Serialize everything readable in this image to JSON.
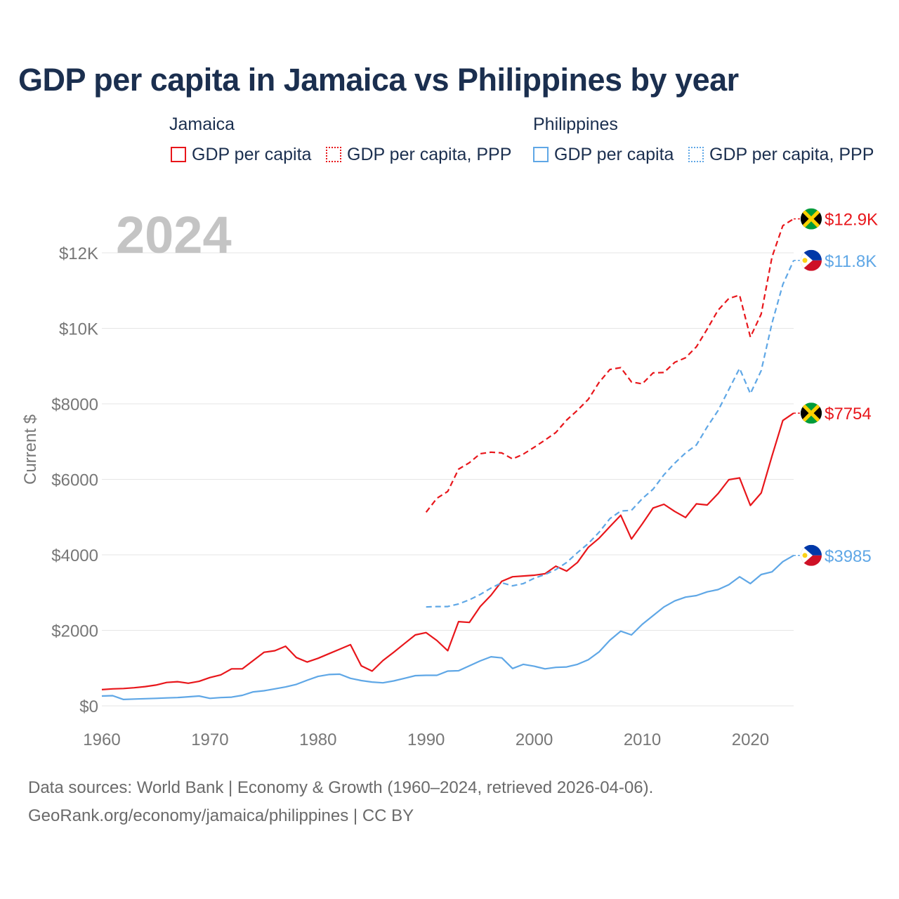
{
  "title": "GDP per capita in Jamaica vs Philippines by year",
  "year_display": "2024",
  "legend": {
    "jamaica_title": "Jamaica",
    "philippines_title": "Philippines",
    "jam_gdp": "GDP per capita",
    "jam_ppp": "GDP per capita, PPP",
    "phl_gdp": "GDP per capita",
    "phl_ppp": "GDP per capita, PPP"
  },
  "colors": {
    "jamaica": "#e8161b",
    "philippines": "#5fa7e6",
    "grid": "#e6e6e6",
    "axis_text": "#777777",
    "title": "#1b2f4f"
  },
  "footer": {
    "line1": "Data sources: World Bank | Economy & Growth (1960–2024, retrieved 2026-04-06).",
    "line2": "GeoRank.org/economy/jamaica/philippines | CC BY"
  },
  "chart_data": {
    "type": "line",
    "title": "GDP per capita in Jamaica vs Philippines by year",
    "xlabel": "",
    "ylabel": "Current $",
    "xlim": [
      1960,
      2024
    ],
    "ylim": [
      0,
      13000
    ],
    "x_ticks": [
      1960,
      1970,
      1980,
      1990,
      2000,
      2010,
      2020
    ],
    "x_tick_labels": [
      "1960",
      "1970",
      "1980",
      "1990",
      "2000",
      "2010",
      "2020"
    ],
    "y_ticks": [
      0,
      2000,
      4000,
      6000,
      8000,
      10000,
      12000
    ],
    "y_tick_labels": [
      "$0",
      "$2000",
      "$4000",
      "$6000",
      "$8000",
      "$10K",
      "$12K"
    ],
    "series": [
      {
        "name": "Jamaica GDP per capita",
        "country": "Jamaica",
        "style": "solid",
        "end_label": "$7754",
        "x": [
          1960,
          1961,
          1962,
          1963,
          1964,
          1965,
          1966,
          1967,
          1968,
          1969,
          1970,
          1971,
          1972,
          1973,
          1974,
          1975,
          1976,
          1977,
          1978,
          1979,
          1980,
          1981,
          1982,
          1983,
          1984,
          1985,
          1986,
          1987,
          1988,
          1989,
          1990,
          1991,
          1992,
          1993,
          1994,
          1995,
          1996,
          1997,
          1998,
          1999,
          2000,
          2001,
          2002,
          2003,
          2004,
          2005,
          2006,
          2007,
          2008,
          2009,
          2010,
          2011,
          2012,
          2013,
          2014,
          2015,
          2016,
          2017,
          2018,
          2019,
          2020,
          2021,
          2022,
          2023,
          2024
        ],
        "values": [
          430,
          450,
          460,
          480,
          510,
          550,
          620,
          640,
          600,
          650,
          750,
          820,
          980,
          980,
          1200,
          1420,
          1460,
          1580,
          1280,
          1160,
          1260,
          1380,
          1500,
          1620,
          1060,
          920,
          1200,
          1420,
          1650,
          1880,
          1940,
          1730,
          1460,
          2230,
          2210,
          2630,
          2930,
          3300,
          3420,
          3440,
          3460,
          3500,
          3700,
          3570,
          3800,
          4200,
          4440,
          4750,
          5050,
          4420,
          4820,
          5240,
          5340,
          5150,
          4990,
          5350,
          5320,
          5620,
          5990,
          6040,
          5310,
          5640,
          6620,
          7560,
          7754
        ]
      },
      {
        "name": "Jamaica GDP per capita, PPP",
        "country": "Jamaica",
        "style": "dashed",
        "end_label": "$12.9K",
        "x": [
          1990,
          1991,
          1992,
          1993,
          1994,
          1995,
          1996,
          1997,
          1998,
          1999,
          2000,
          2001,
          2002,
          2003,
          2004,
          2005,
          2006,
          2007,
          2008,
          2009,
          2010,
          2011,
          2012,
          2013,
          2014,
          2015,
          2016,
          2017,
          2018,
          2019,
          2020,
          2021,
          2022,
          2023,
          2024
        ],
        "values": [
          5130,
          5500,
          5680,
          6270,
          6440,
          6680,
          6720,
          6700,
          6540,
          6670,
          6850,
          7040,
          7240,
          7570,
          7830,
          8120,
          8570,
          8910,
          8960,
          8580,
          8530,
          8820,
          8830,
          9100,
          9220,
          9510,
          9980,
          10480,
          10790,
          10880,
          9770,
          10380,
          11890,
          12720,
          12900
        ]
      },
      {
        "name": "Philippines GDP per capita",
        "country": "Philippines",
        "style": "solid",
        "end_label": "$3985",
        "x": [
          1960,
          1961,
          1962,
          1963,
          1964,
          1965,
          1966,
          1967,
          1968,
          1969,
          1970,
          1971,
          1972,
          1973,
          1974,
          1975,
          1976,
          1977,
          1978,
          1979,
          1980,
          1981,
          1982,
          1983,
          1984,
          1985,
          1986,
          1987,
          1988,
          1989,
          1990,
          1991,
          1992,
          1993,
          1994,
          1995,
          1996,
          1997,
          1998,
          1999,
          2000,
          2001,
          2002,
          2003,
          2004,
          2005,
          2006,
          2007,
          2008,
          2009,
          2010,
          2011,
          2012,
          2013,
          2014,
          2015,
          2016,
          2017,
          2018,
          2019,
          2020,
          2021,
          2022,
          2023,
          2024
        ],
        "values": [
          260,
          270,
          170,
          180,
          190,
          200,
          210,
          220,
          240,
          260,
          200,
          220,
          230,
          280,
          370,
          400,
          450,
          500,
          570,
          680,
          780,
          830,
          840,
          730,
          670,
          630,
          610,
          660,
          730,
          800,
          810,
          810,
          920,
          930,
          1060,
          1190,
          1300,
          1270,
          990,
          1100,
          1050,
          980,
          1020,
          1030,
          1100,
          1220,
          1430,
          1740,
          1980,
          1880,
          2160,
          2390,
          2620,
          2780,
          2880,
          2920,
          3020,
          3080,
          3210,
          3420,
          3240,
          3480,
          3550,
          3820,
          3985
        ]
      },
      {
        "name": "Philippines GDP per capita, PPP",
        "country": "Philippines",
        "style": "dashed",
        "end_label": "$11.8K",
        "x": [
          1990,
          1991,
          1992,
          1993,
          1994,
          1995,
          1996,
          1997,
          1998,
          1999,
          2000,
          2001,
          2002,
          2003,
          2004,
          2005,
          2006,
          2007,
          2008,
          2009,
          2010,
          2011,
          2012,
          2013,
          2014,
          2015,
          2016,
          2017,
          2018,
          2019,
          2020,
          2021,
          2022,
          2023,
          2024
        ],
        "values": [
          2620,
          2630,
          2630,
          2700,
          2810,
          2950,
          3120,
          3260,
          3180,
          3240,
          3380,
          3480,
          3610,
          3800,
          4060,
          4300,
          4600,
          4960,
          5160,
          5180,
          5490,
          5740,
          6120,
          6430,
          6700,
          6910,
          7390,
          7820,
          8380,
          8940,
          8270,
          8880,
          10140,
          11160,
          11800
        ]
      }
    ]
  }
}
